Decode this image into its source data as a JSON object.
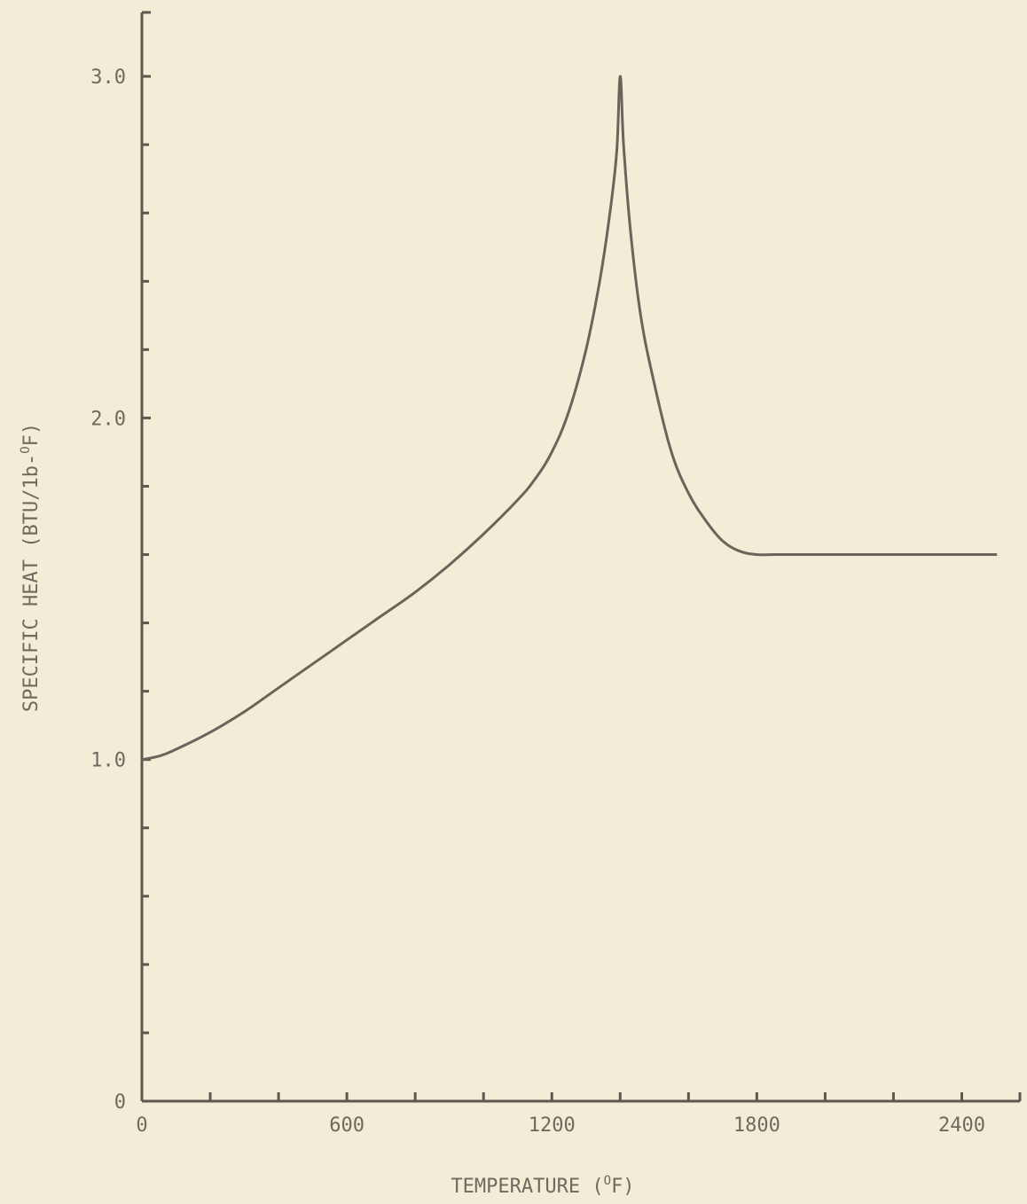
{
  "chart_data": {
    "type": "line",
    "title": "",
    "xlabel": {
      "main": "TEMPERATURE (",
      "sup": "O",
      "tail": "F)"
    },
    "ylabel": {
      "main": "SPECIFIC HEAT (BTU/1b-",
      "sup": "O",
      "tail": "F)"
    },
    "xlim": [
      0,
      2500
    ],
    "ylim": [
      0,
      3.0
    ],
    "x_major_ticks": [
      0,
      600,
      1200,
      1800,
      2400
    ],
    "x_major_tick_labels": [
      "0",
      "600",
      "1200",
      "1800",
      "2400"
    ],
    "x_minor_tick_step": 200,
    "y_major_ticks": [
      0,
      1.0,
      2.0,
      3.0
    ],
    "y_major_tick_labels": [
      "0",
      "1.0",
      "2.0",
      "3.0"
    ],
    "y_minor_tick_step": 0.2,
    "grid": false,
    "series": [
      {
        "color": "#6b645a",
        "x": [
          0,
          50,
          100,
          200,
          300,
          400,
          500,
          600,
          700,
          800,
          900,
          1000,
          1100,
          1150,
          1200,
          1250,
          1300,
          1340,
          1370,
          1390,
          1400,
          1410,
          1430,
          1460,
          1500,
          1550,
          1600,
          1650,
          1700,
          1750,
          1800,
          1850,
          1900,
          2000,
          2100,
          2200,
          2300,
          2400,
          2500
        ],
        "y": [
          1.0,
          1.01,
          1.03,
          1.08,
          1.14,
          1.21,
          1.28,
          1.35,
          1.42,
          1.49,
          1.57,
          1.66,
          1.76,
          1.82,
          1.9,
          2.02,
          2.2,
          2.4,
          2.6,
          2.78,
          3.0,
          2.8,
          2.55,
          2.3,
          2.1,
          1.9,
          1.78,
          1.7,
          1.64,
          1.61,
          1.6,
          1.6,
          1.6,
          1.6,
          1.6,
          1.6,
          1.6,
          1.6,
          1.6
        ]
      }
    ]
  }
}
